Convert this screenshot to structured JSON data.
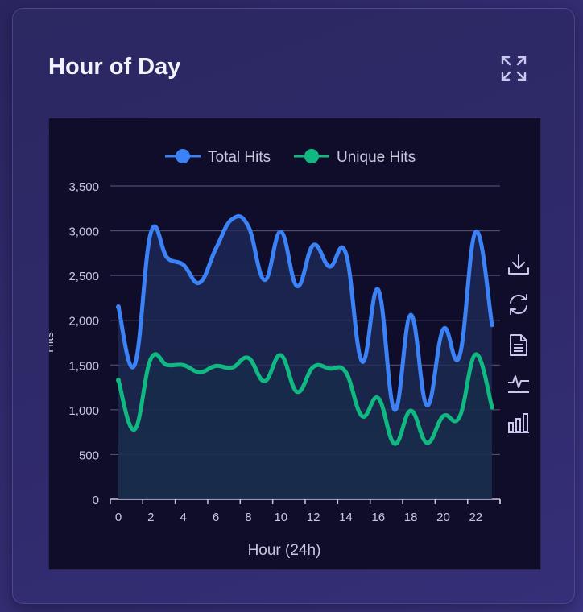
{
  "card": {
    "title": "Hour of Day",
    "expand_icon": "expand-icon"
  },
  "toolbar": {
    "icons": [
      "download-icon",
      "refresh-icon",
      "document-icon",
      "line-chart-icon",
      "bar-chart-icon"
    ]
  },
  "colors": {
    "total": "#3b82f6",
    "unique": "#10b981",
    "plot_bg": "#100d2b",
    "grid": "#5a5a78",
    "text": "#c8c8dc"
  },
  "chart_data": {
    "type": "line",
    "xlabel": "Hour (24h)",
    "ylabel": "Hits",
    "ylim": [
      0,
      3500
    ],
    "yticks": [
      0,
      500,
      1000,
      1500,
      2000,
      2500,
      3000,
      3500
    ],
    "ytick_labels": [
      "0",
      "500",
      "1,000",
      "1,500",
      "2,000",
      "2,500",
      "3,000",
      "3,500"
    ],
    "xticks": [
      0,
      2,
      4,
      6,
      8,
      10,
      12,
      14,
      16,
      18,
      20,
      22
    ],
    "xtick_labels": [
      "0",
      "2",
      "4",
      "6",
      "8",
      "10",
      "12",
      "14",
      "16",
      "18",
      "20",
      "22"
    ],
    "grid": true,
    "legend": "top-center",
    "x": [
      0,
      1,
      2,
      3,
      4,
      5,
      6,
      7,
      8,
      9,
      10,
      11,
      12,
      13,
      14,
      15,
      16,
      17,
      18,
      19,
      20,
      21,
      22,
      23
    ],
    "series": [
      {
        "name": "Total Hits",
        "values": [
          2150,
          1500,
          2980,
          2700,
          2620,
          2420,
          2800,
          3130,
          3050,
          2450,
          2990,
          2380,
          2840,
          2600,
          2750,
          1540,
          2340,
          1000,
          2060,
          1050,
          1900,
          1600,
          2990,
          1950
        ]
      },
      {
        "name": "Unique Hits",
        "values": [
          1330,
          780,
          1570,
          1500,
          1500,
          1420,
          1490,
          1470,
          1580,
          1320,
          1610,
          1200,
          1480,
          1460,
          1420,
          930,
          1130,
          620,
          990,
          630,
          930,
          920,
          1620,
          1030
        ]
      }
    ]
  }
}
